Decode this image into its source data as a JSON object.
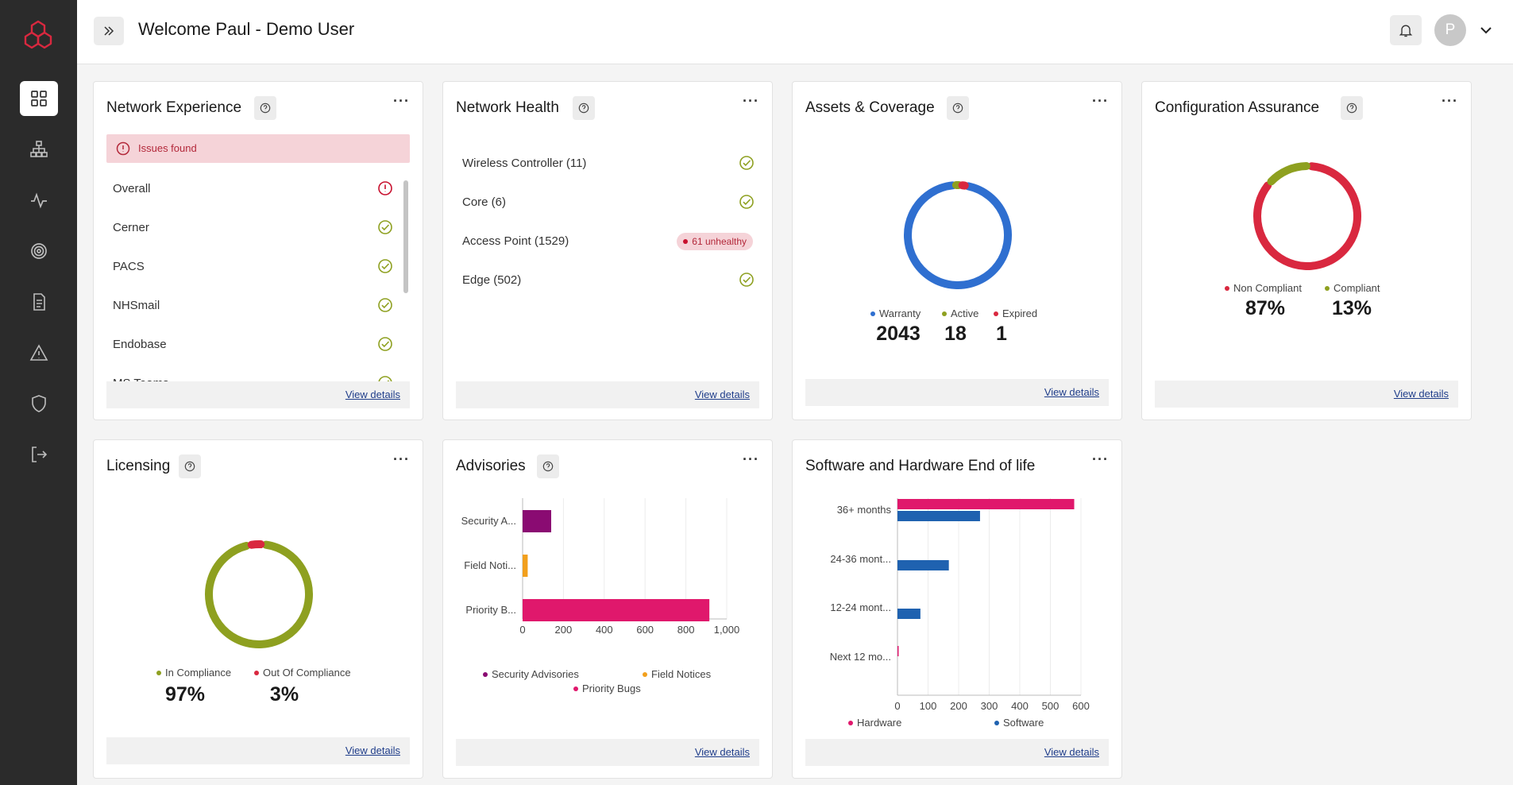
{
  "header": {
    "welcome": "Welcome Paul - Demo User",
    "avatar_initial": "P"
  },
  "sidebar": {
    "items": [
      {
        "icon": "grid-icon",
        "active": true
      },
      {
        "icon": "hierarchy-icon",
        "active": false
      },
      {
        "icon": "activity-icon",
        "active": false
      },
      {
        "icon": "target-icon",
        "active": false
      },
      {
        "icon": "document-icon",
        "active": false
      },
      {
        "icon": "warning-icon",
        "active": false
      },
      {
        "icon": "shield-icon",
        "active": false
      },
      {
        "icon": "logout-icon",
        "active": false
      }
    ]
  },
  "common": {
    "view_details": "View details",
    "more": "···"
  },
  "network_experience": {
    "title": "Network Experience",
    "banner": "Issues found",
    "items": [
      {
        "label": "Overall",
        "status": "issue"
      },
      {
        "label": "Cerner",
        "status": "ok"
      },
      {
        "label": "PACS",
        "status": "ok"
      },
      {
        "label": "NHSmail",
        "status": "ok"
      },
      {
        "label": "Endobase",
        "status": "ok"
      },
      {
        "label": "MS Teams",
        "status": "ok"
      }
    ]
  },
  "network_health": {
    "title": "Network Health",
    "items": [
      {
        "label": "Wireless Controller (11)",
        "status": "ok"
      },
      {
        "label": "Core (6)",
        "status": "ok"
      },
      {
        "label": "Access Point (1529)",
        "status": "unhealthy",
        "badge": "61 unhealthy"
      },
      {
        "label": "Edge (502)",
        "status": "ok"
      }
    ]
  },
  "assets": {
    "title": "Assets & Coverage",
    "legend": [
      {
        "label": "Warranty",
        "value": "2043",
        "color": "#2f6fd0"
      },
      {
        "label": "Active",
        "value": "18",
        "color": "#8ea020"
      },
      {
        "label": "Expired",
        "value": "1",
        "color": "#d9283f"
      }
    ]
  },
  "configuration": {
    "title": "Configuration Assurance",
    "legend": [
      {
        "label": "Non Compliant",
        "value": "87%",
        "color": "#d9283f"
      },
      {
        "label": "Compliant",
        "value": "13%",
        "color": "#8ea020"
      }
    ]
  },
  "licensing": {
    "title": "Licensing",
    "legend": [
      {
        "label": "In Compliance",
        "value": "97%",
        "color": "#8ea020"
      },
      {
        "label": "Out Of Compliance",
        "value": "3%",
        "color": "#d9283f"
      }
    ]
  },
  "advisories": {
    "title": "Advisories",
    "legend": [
      {
        "label": "Security Advisories",
        "color": "#8a0b72"
      },
      {
        "label": "Field Notices",
        "color": "#f2a01d"
      },
      {
        "label": "Priority Bugs",
        "color": "#e0186c"
      }
    ]
  },
  "eol": {
    "title": "Software and Hardware End of life",
    "legend": [
      {
        "label": "Hardware",
        "color": "#e0186c"
      },
      {
        "label": "Software",
        "color": "#1f62b0"
      }
    ]
  },
  "chart_data": [
    {
      "type": "pie",
      "title": "Assets & Coverage",
      "labels": [
        "Warranty",
        "Active",
        "Expired"
      ],
      "values": [
        2043,
        18,
        1
      ]
    },
    {
      "type": "pie",
      "title": "Configuration Assurance",
      "labels": [
        "Non Compliant",
        "Compliant"
      ],
      "values": [
        87,
        13
      ]
    },
    {
      "type": "pie",
      "title": "Licensing",
      "labels": [
        "In Compliance",
        "Out Of Compliance"
      ],
      "values": [
        97,
        3
      ]
    },
    {
      "type": "bar",
      "title": "Advisories",
      "orientation": "horizontal",
      "categories": [
        "Security A...",
        "Field Noti...",
        "Priority B..."
      ],
      "series": [
        {
          "name": "Security Advisories",
          "values": [
            140,
            0,
            0
          ]
        },
        {
          "name": "Field Notices",
          "values": [
            0,
            25,
            0
          ]
        },
        {
          "name": "Priority Bugs",
          "values": [
            0,
            0,
            915
          ]
        }
      ],
      "xlim": [
        0,
        1000
      ],
      "xticks": [
        "0",
        "200",
        "400",
        "600",
        "800",
        "1,000"
      ]
    },
    {
      "type": "bar",
      "title": "Software and Hardware End of life",
      "orientation": "horizontal",
      "categories": [
        "36+ months",
        "24-36 mont...",
        "12-24 mont...",
        "Next 12 mo..."
      ],
      "series": [
        {
          "name": "Hardware",
          "values": [
            578,
            0,
            0,
            3
          ]
        },
        {
          "name": "Software",
          "values": [
            270,
            168,
            75,
            0
          ]
        }
      ],
      "xlim": [
        0,
        600
      ],
      "xticks": [
        "0",
        "100",
        "200",
        "300",
        "400",
        "500",
        "600"
      ]
    }
  ]
}
